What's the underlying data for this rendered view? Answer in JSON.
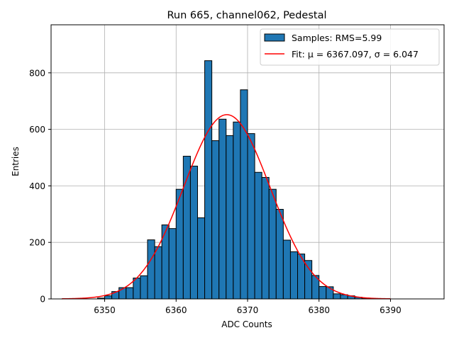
{
  "chart_data": {
    "type": "bar",
    "title": "Run 665, channel062, Pedestal",
    "xlabel": "ADC Counts",
    "ylabel": "Entries",
    "xlim": [
      6342.5,
      6397.5
    ],
    "ylim": [
      0,
      970
    ],
    "xticks": [
      6350,
      6360,
      6370,
      6380,
      6390
    ],
    "yticks": [
      0,
      200,
      400,
      600,
      800
    ],
    "grid": true,
    "legend_position": "top-right",
    "bin_width": 1,
    "histogram": {
      "name": "Samples: RMS=5.99",
      "color": "#1f77b4",
      "edge_color": "#000000",
      "bin_starts": [
        6349,
        6350,
        6351,
        6352,
        6353,
        6354,
        6355,
        6356,
        6357,
        6358,
        6359,
        6360,
        6361,
        6362,
        6363,
        6364,
        6365,
        6366,
        6367,
        6368,
        6369,
        6370,
        6371,
        6372,
        6373,
        6374,
        6375,
        6376,
        6377,
        6378,
        6379,
        6380,
        6381,
        6382,
        6383,
        6384,
        6385,
        6386
      ],
      "counts": [
        3,
        11,
        26,
        40,
        40,
        74,
        82,
        209,
        185,
        262,
        249,
        388,
        505,
        470,
        287,
        843,
        560,
        636,
        578,
        626,
        740,
        585,
        448,
        430,
        388,
        317,
        208,
        167,
        159,
        136,
        83,
        44,
        43,
        18,
        15,
        11,
        6,
        3
      ]
    },
    "fit": {
      "name": "Fit: μ = 6367.097, σ = 6.047",
      "color": "#ff0000",
      "mu": 6367.097,
      "sigma": 6.047,
      "amplitude": 652,
      "x_range": [
        6344,
        6390
      ]
    }
  }
}
